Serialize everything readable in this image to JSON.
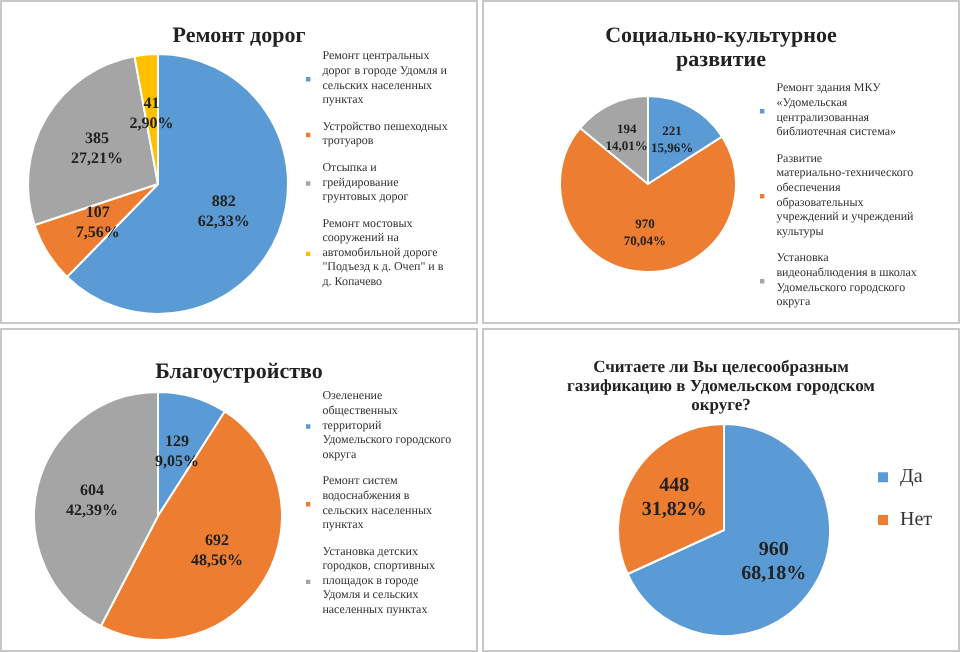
{
  "chart_data": [
    {
      "type": "pie",
      "title": "Ремонт дорог",
      "legend": "right",
      "categories": [
        "Ремонт центральных дорог в городе Удомля и сельских населенных пунктах",
        "Устройство пешеходных тротуаров",
        "Отсыпка и грейдирование грунтовых дорог",
        "Ремонт мостовых сооружений на автомобильной дороге \"Подъезд к д. Очеп\" и в д. Копачево"
      ],
      "values": [
        882,
        107,
        385,
        41
      ],
      "value_labels": [
        "882\n62,33%",
        "107\n7,56%",
        "385\n27,21%",
        "41\n2,90%"
      ],
      "colors": [
        "#5b9bd5",
        "#ed7d31",
        "#a5a5a5",
        "#ffc000"
      ]
    },
    {
      "type": "pie",
      "title": "Социально-культурное развитие",
      "legend": "right",
      "categories": [
        "Ремонт здания МКУ «Удомельская централизованная библиотечная система»",
        "Развитие материально-технического обеспечения образовательных учреждений и учреждений культуры",
        "Установка видеонаблюдения в школах Удомельского городского округа"
      ],
      "values": [
        221,
        970,
        194
      ],
      "value_labels": [
        "221\n15,96%",
        "970\n70,04%",
        "194\n14,01%"
      ],
      "colors": [
        "#5b9bd5",
        "#ed7d31",
        "#a5a5a5"
      ]
    },
    {
      "type": "pie",
      "title": "Благоустройство",
      "legend": "right",
      "categories": [
        "Озеленение общественных территорий Удомельского городского округа",
        "Ремонт систем водоснабжения в сельских населенных пунктах",
        "Установка детских городков, спортивных площадок в городе Удомля и сельских населенных пунктах"
      ],
      "values": [
        129,
        692,
        604
      ],
      "value_labels": [
        "129\n9,05%",
        "692\n48,56%",
        "604\n42,39%"
      ],
      "colors": [
        "#5b9bd5",
        "#ed7d31",
        "#a5a5a5"
      ]
    },
    {
      "type": "pie",
      "title": "Считаете ли Вы целесообразным газификацию в Удомельском городском округе?",
      "legend": "right",
      "categories": [
        "Да",
        "Нет"
      ],
      "values": [
        960,
        448
      ],
      "value_labels": [
        "960\n68,18%",
        "448\n31,82%"
      ],
      "colors": [
        "#5b9bd5",
        "#ed7d31"
      ]
    }
  ]
}
